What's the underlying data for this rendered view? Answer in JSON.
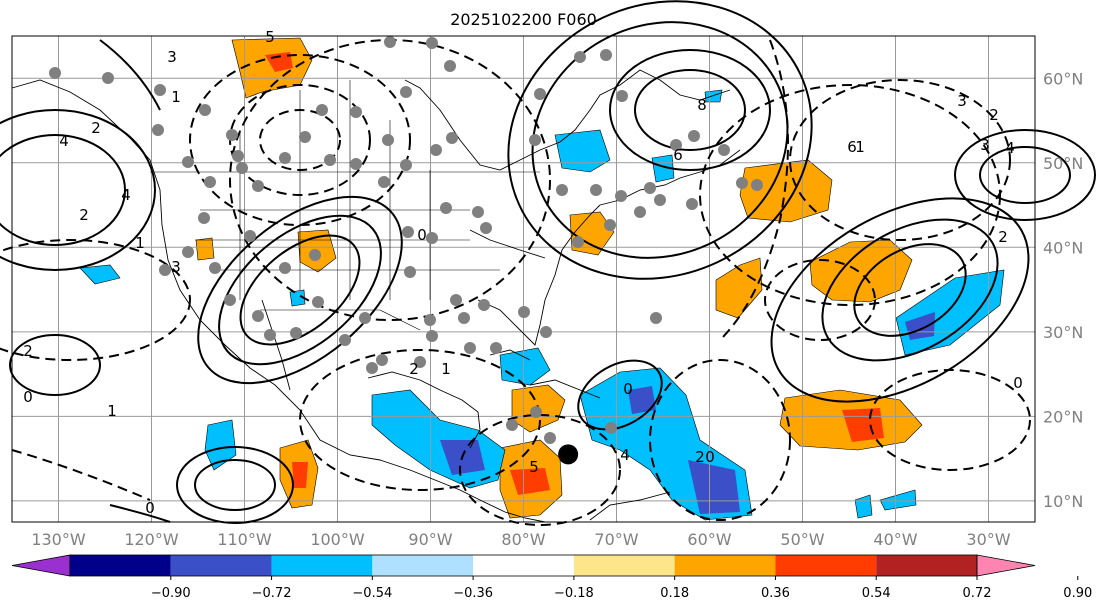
{
  "title": "2025102200 F060",
  "map": {
    "lon_range": [
      -135,
      -25
    ],
    "lat_range": [
      7.5,
      65
    ],
    "lon_ticks": [
      "130°W",
      "120°W",
      "110°W",
      "100°W",
      "90°W",
      "80°W",
      "70°W",
      "60°W",
      "50°W",
      "40°W",
      "30°W"
    ],
    "lat_ticks": [
      "60°N",
      "50°N",
      "40°N",
      "30°N",
      "20°N",
      "10°N"
    ],
    "gridlines": true,
    "marker": {
      "lon": -75.2,
      "lat": 15.5,
      "color": "#000000"
    }
  },
  "colorbar": {
    "orientation": "horizontal",
    "extend": "both",
    "colors": [
      "#9b30d0",
      "#00008b",
      "#3b50c8",
      "#00bfff",
      "#b0e0ff",
      "#ffffff",
      "#fde58a",
      "#ffa500",
      "#ff3d00",
      "#b22222",
      "#ff85b0"
    ],
    "tick_labels": [
      "−0.90",
      "−0.72",
      "−0.54",
      "−0.36",
      "−0.18",
      "0.18",
      "0.36",
      "0.54",
      "0.72",
      "0.90"
    ]
  },
  "contour_labels": [
    "3",
    "4",
    "2",
    "1",
    "0",
    "5",
    "8",
    "6",
    "3",
    "4",
    "2",
    "0",
    "1",
    "2",
    "3",
    "2",
    "1",
    "0",
    "4",
    "2",
    "0",
    "4",
    "2",
    "5",
    "0",
    "1",
    "6",
    "2",
    "3",
    "1",
    "0"
  ],
  "legend_colors": {
    "contour": "#000000",
    "gridline": "#9a9a9a",
    "station": "#808080"
  }
}
